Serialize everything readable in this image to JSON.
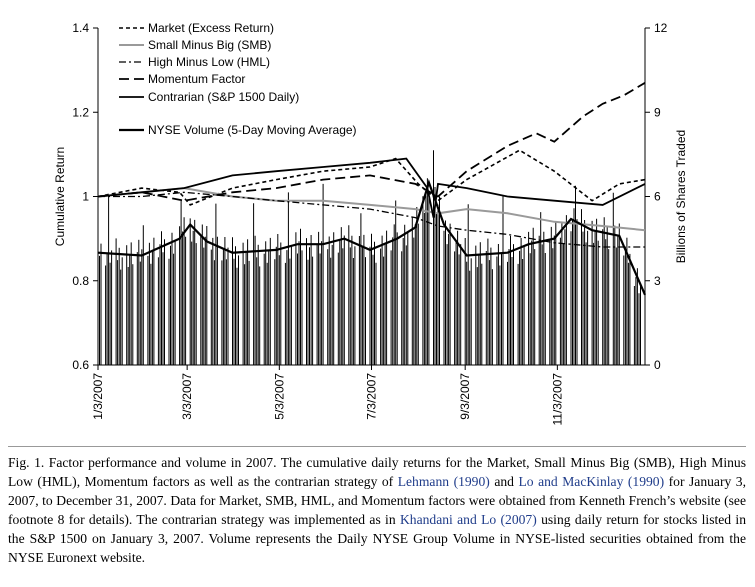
{
  "chart_data": [
    {
      "type": "line",
      "ylabel_left": "Cumulative Return",
      "ylabel_right": "Billions of Shares Traded",
      "ylim_left": [
        0.6,
        1.4
      ],
      "yticks_left": [
        "0.6",
        "0.8",
        "1",
        "1.2",
        "1.4"
      ],
      "ylim_right": [
        0,
        12
      ],
      "yticks_right": [
        "0",
        "3",
        "6",
        "9",
        "12"
      ],
      "xticks": [
        "1/3/2007",
        "3/3/2007",
        "5/3/2007",
        "7/3/2007",
        "9/3/2007",
        "11/3/2007"
      ],
      "x_start": "2007-01-03",
      "x_end": "2007-12-31",
      "legend_position": "top-left",
      "series": [
        {
          "name": "Market (Excess Return)",
          "style": "short-dash",
          "axis": "left",
          "x": [
            "2007-01-03",
            "2007-02-01",
            "2007-02-26",
            "2007-03-05",
            "2007-04-02",
            "2007-05-01",
            "2007-06-01",
            "2007-07-02",
            "2007-07-19",
            "2007-08-03",
            "2007-08-16",
            "2007-09-04",
            "2007-10-09",
            "2007-11-01",
            "2007-11-26",
            "2007-12-14",
            "2007-12-31"
          ],
          "y": [
            1.0,
            1.02,
            1.01,
            0.98,
            1.02,
            1.04,
            1.06,
            1.07,
            1.09,
            1.03,
            0.99,
            1.04,
            1.11,
            1.06,
            0.99,
            1.03,
            1.04
          ]
        },
        {
          "name": "Small Minus Big (SMB)",
          "style": "solid-gray",
          "axis": "left",
          "x": [
            "2007-01-03",
            "2007-02-01",
            "2007-03-01",
            "2007-04-02",
            "2007-05-01",
            "2007-06-01",
            "2007-07-02",
            "2007-08-01",
            "2007-08-16",
            "2007-09-04",
            "2007-10-01",
            "2007-11-01",
            "2007-12-03",
            "2007-12-31"
          ],
          "y": [
            1.0,
            1.01,
            1.02,
            1.0,
            0.99,
            0.99,
            0.98,
            0.97,
            0.96,
            0.97,
            0.96,
            0.94,
            0.93,
            0.92
          ]
        },
        {
          "name": "High Minus Low (HML)",
          "style": "dash-dot",
          "axis": "left",
          "x": [
            "2007-01-03",
            "2007-02-01",
            "2007-03-01",
            "2007-04-02",
            "2007-05-01",
            "2007-06-01",
            "2007-07-02",
            "2007-08-01",
            "2007-08-16",
            "2007-09-04",
            "2007-10-01",
            "2007-11-01",
            "2007-12-03",
            "2007-12-31"
          ],
          "y": [
            1.0,
            1.0,
            1.01,
            1.0,
            0.99,
            0.98,
            0.97,
            0.95,
            0.93,
            0.92,
            0.91,
            0.89,
            0.88,
            0.88
          ]
        },
        {
          "name": "Momentum Factor",
          "style": "long-dash",
          "axis": "left",
          "x": [
            "2007-01-03",
            "2007-02-01",
            "2007-03-01",
            "2007-04-02",
            "2007-05-01",
            "2007-06-01",
            "2007-07-02",
            "2007-08-01",
            "2007-08-16",
            "2007-09-04",
            "2007-10-01",
            "2007-10-20",
            "2007-11-01",
            "2007-11-20",
            "2007-12-03",
            "2007-12-17",
            "2007-12-31"
          ],
          "y": [
            1.0,
            1.01,
            0.99,
            1.01,
            1.02,
            1.04,
            1.05,
            1.03,
            1.0,
            1.06,
            1.12,
            1.15,
            1.13,
            1.19,
            1.22,
            1.24,
            1.27
          ]
        },
        {
          "name": "Contrarian (S&P 1500 Daily)",
          "style": "solid-black",
          "axis": "left",
          "x": [
            "2007-01-03",
            "2007-02-01",
            "2007-03-01",
            "2007-04-02",
            "2007-05-01",
            "2007-06-01",
            "2007-07-02",
            "2007-07-26",
            "2007-08-09",
            "2007-08-13",
            "2007-08-16",
            "2007-09-04",
            "2007-10-01",
            "2007-11-01",
            "2007-12-03",
            "2007-12-31"
          ],
          "y": [
            1.0,
            1.01,
            1.02,
            1.05,
            1.06,
            1.07,
            1.08,
            1.09,
            1.02,
            0.95,
            1.03,
            1.02,
            1.0,
            0.99,
            0.98,
            1.03
          ]
        },
        {
          "name": "NYSE Volume (5-Day Moving Average)",
          "style": "bars+thick-line",
          "axis": "right",
          "x": [
            "2007-01-03",
            "2007-02-01",
            "2007-02-26",
            "2007-03-05",
            "2007-03-16",
            "2007-04-02",
            "2007-05-01",
            "2007-05-15",
            "2007-06-01",
            "2007-06-15",
            "2007-07-02",
            "2007-07-20",
            "2007-08-01",
            "2007-08-10",
            "2007-08-20",
            "2007-09-04",
            "2007-10-01",
            "2007-10-15",
            "2007-11-01",
            "2007-11-12",
            "2007-11-26",
            "2007-12-14",
            "2007-12-31"
          ],
          "y": [
            4.0,
            3.9,
            4.5,
            5.0,
            4.4,
            4.0,
            4.1,
            4.3,
            4.3,
            4.5,
            4.1,
            4.5,
            4.9,
            6.5,
            5.0,
            3.9,
            4.0,
            4.3,
            4.5,
            5.2,
            4.8,
            4.6,
            2.5
          ]
        }
      ]
    }
  ],
  "caption": {
    "prefix": "Fig. 1.  Factor performance and volume in 2007. The cumulative daily returns for the Market, Small Minus Big (SMB), High Minus Low (HML), Momentum factors as well as the contrarian strategy of ",
    "cite1": "Lehmann (1990)",
    "mid1": " and ",
    "cite2": "Lo and MacKinlay (1990)",
    "mid2": " for January 3, 2007, to December 31, 2007. Data for Market, SMB, HML, and Momentum factors were obtained from Kenneth French’s website (see footnote 8 for details). The contrarian strategy was implemented as in ",
    "cite3": "Khandani and Lo (2007)",
    "suffix": " using daily return for stocks listed in the S&P 1500 on January 3, 2007. Volume represents the Daily NYSE Group Volume in NYSE-listed securities obtained from the NYSE Euronext website."
  }
}
